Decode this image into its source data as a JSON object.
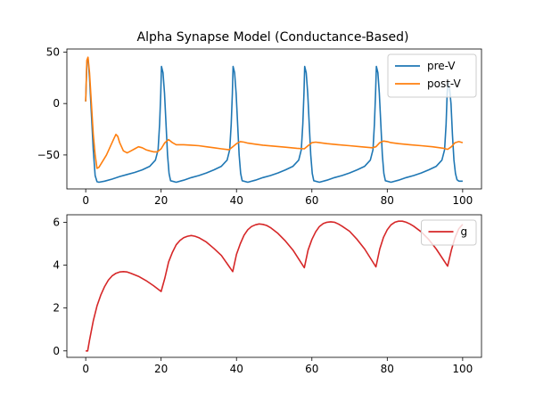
{
  "chart_data": [
    {
      "type": "line",
      "title": "Alpha Synapse Model (Conductance-Based)",
      "xlabel": "",
      "ylabel": "",
      "xlim": [
        -5,
        105
      ],
      "ylim": [
        -83,
        53
      ],
      "xticks": [
        0,
        20,
        40,
        60,
        80,
        100
      ],
      "xtick_labels": [
        "0",
        "20",
        "40",
        "60",
        "80",
        "100"
      ],
      "yticks": [
        50,
        0,
        -50
      ],
      "ytick_labels": [
        "50",
        "0",
        "−50"
      ],
      "grid": false,
      "legend": "upper-right",
      "series": [
        {
          "name": "pre-V",
          "color": "#1f77b4",
          "x": [
            0,
            0.3,
            0.6,
            1.0,
            1.5,
            2.0,
            2.5,
            3.0,
            3.5,
            5,
            7,
            9,
            11,
            13,
            15,
            17,
            18.5,
            19.2,
            19.6,
            19.9,
            20.1,
            20.5,
            20.9,
            21.3,
            21.7,
            22.1,
            22.5,
            24,
            26,
            28,
            30,
            32,
            34,
            36,
            37.5,
            38.2,
            38.6,
            38.9,
            39.1,
            39.5,
            39.9,
            40.3,
            40.7,
            41.1,
            41.5,
            43,
            45,
            47,
            49,
            51,
            53,
            55,
            56.5,
            57.2,
            57.6,
            57.9,
            58.1,
            58.5,
            58.9,
            59.3,
            59.7,
            60.1,
            60.5,
            62,
            64,
            66,
            68,
            70,
            72,
            74,
            75.5,
            76.2,
            76.6,
            76.9,
            77.1,
            77.5,
            77.9,
            78.3,
            78.7,
            79.1,
            79.5,
            81,
            83,
            85,
            87,
            89,
            91,
            93,
            94.5,
            95.2,
            95.6,
            95.9,
            96.1,
            96.5,
            96.9,
            97.3,
            97.7,
            98.1,
            98.5,
            99,
            99.5,
            100
          ],
          "y": [
            2,
            40,
            44,
            25,
            -10,
            -45,
            -70,
            -76,
            -76.5,
            -75.5,
            -73.5,
            -71,
            -69,
            -67,
            -64.5,
            -61,
            -55,
            -45,
            -20,
            10,
            36,
            30,
            10,
            -20,
            -50,
            -68,
            -75,
            -76.5,
            -74.5,
            -72,
            -70,
            -67.5,
            -64.5,
            -61,
            -55,
            -45,
            -20,
            10,
            36,
            30,
            10,
            -20,
            -50,
            -68,
            -75,
            -76.5,
            -74.5,
            -72,
            -70,
            -67.5,
            -64.5,
            -61,
            -55,
            -45,
            -20,
            10,
            36,
            30,
            10,
            -20,
            -50,
            -68,
            -75,
            -76.5,
            -74.5,
            -72,
            -70,
            -67.5,
            -64.5,
            -61,
            -55,
            -45,
            -20,
            10,
            36,
            30,
            10,
            -20,
            -50,
            -68,
            -75,
            -76.5,
            -74.5,
            -72,
            -70,
            -67.5,
            -64.5,
            -61,
            -55,
            -45,
            -20,
            10,
            20,
            15,
            0,
            -30,
            -55,
            -68,
            -74,
            -75.5,
            -75.5,
            -75.5
          ]
        },
        {
          "name": "post-V",
          "color": "#ff7f0e",
          "x": [
            0,
            0.3,
            0.6,
            1.0,
            1.5,
            2.0,
            2.5,
            3.0,
            3.5,
            4.5,
            5.5,
            6.5,
            7.5,
            8.0,
            8.5,
            9.0,
            10,
            11,
            12,
            13,
            14,
            15,
            16,
            17,
            18,
            19,
            20,
            21,
            22,
            23,
            24,
            26,
            28,
            30,
            32,
            34,
            36,
            38,
            39,
            40,
            41,
            42,
            43,
            45,
            47,
            50,
            53,
            56,
            58,
            59,
            60,
            61,
            62,
            64,
            67,
            70,
            73,
            76,
            77,
            78,
            79,
            80,
            81,
            83,
            86,
            89,
            92,
            95,
            96,
            97,
            98,
            99,
            100
          ],
          "y": [
            2,
            42,
            45,
            30,
            0,
            -30,
            -50,
            -63,
            -62,
            -56,
            -50,
            -42,
            -34,
            -30,
            -32,
            -38,
            -46,
            -48,
            -46,
            -44,
            -42,
            -43,
            -45,
            -46,
            -47,
            -47,
            -44,
            -38,
            -35,
            -38,
            -40,
            -40,
            -40.5,
            -41,
            -42,
            -43,
            -44,
            -45,
            -42,
            -39,
            -37,
            -37.5,
            -38.5,
            -39.5,
            -40.5,
            -41.5,
            -42.5,
            -43.5,
            -44,
            -41,
            -38,
            -37.5,
            -38,
            -39,
            -40,
            -41,
            -42,
            -43,
            -42,
            -38,
            -36.5,
            -37,
            -38,
            -39,
            -40,
            -41,
            -42,
            -43.5,
            -44.5,
            -42,
            -38,
            -37,
            -38
          ]
        }
      ]
    },
    {
      "type": "line",
      "title": "",
      "xlabel": "",
      "ylabel": "",
      "xlim": [
        -5,
        105
      ],
      "ylim": [
        -0.3,
        6.35
      ],
      "xticks": [
        0,
        20,
        40,
        60,
        80,
        100
      ],
      "xtick_labels": [
        "0",
        "20",
        "40",
        "60",
        "80",
        "100"
      ],
      "yticks": [
        0,
        2,
        4,
        6
      ],
      "ytick_labels": [
        "0",
        "2",
        "4",
        "6"
      ],
      "grid": false,
      "legend": "upper-right",
      "series": [
        {
          "name": "g",
          "color": "#d62728",
          "x": [
            0,
            0.5,
            1,
            2,
            3,
            4,
            5,
            6,
            7,
            8,
            9,
            10,
            11,
            12,
            14,
            16,
            18,
            20,
            21,
            22,
            23,
            24,
            25,
            26,
            27,
            28,
            29,
            30,
            32,
            34,
            36,
            39,
            40,
            41,
            42,
            43,
            44,
            45,
            46,
            47,
            48,
            49,
            51,
            53,
            55,
            58,
            59,
            60,
            61,
            62,
            63,
            64,
            65,
            66,
            67,
            68,
            70,
            72,
            74,
            77,
            78,
            79,
            80,
            81,
            82,
            83,
            84,
            85,
            86,
            87,
            89,
            91,
            93,
            96,
            97,
            98,
            99,
            100
          ],
          "y": [
            0,
            0,
            0.5,
            1.4,
            2.1,
            2.6,
            3.0,
            3.3,
            3.5,
            3.62,
            3.68,
            3.7,
            3.68,
            3.62,
            3.48,
            3.28,
            3.04,
            2.77,
            3.4,
            4.15,
            4.6,
            4.95,
            5.15,
            5.28,
            5.35,
            5.38,
            5.35,
            5.28,
            5.08,
            4.78,
            4.45,
            3.7,
            4.5,
            5.0,
            5.4,
            5.65,
            5.8,
            5.88,
            5.92,
            5.9,
            5.85,
            5.75,
            5.48,
            5.12,
            4.7,
            3.88,
            4.7,
            5.2,
            5.55,
            5.8,
            5.94,
            6.0,
            6.02,
            6.0,
            5.92,
            5.82,
            5.58,
            5.2,
            4.75,
            3.92,
            4.75,
            5.3,
            5.65,
            5.88,
            6.0,
            6.05,
            6.05,
            6.0,
            5.92,
            5.82,
            5.55,
            5.2,
            4.75,
            3.95,
            4.7,
            5.3,
            5.7,
            5.9
          ]
        }
      ]
    }
  ]
}
